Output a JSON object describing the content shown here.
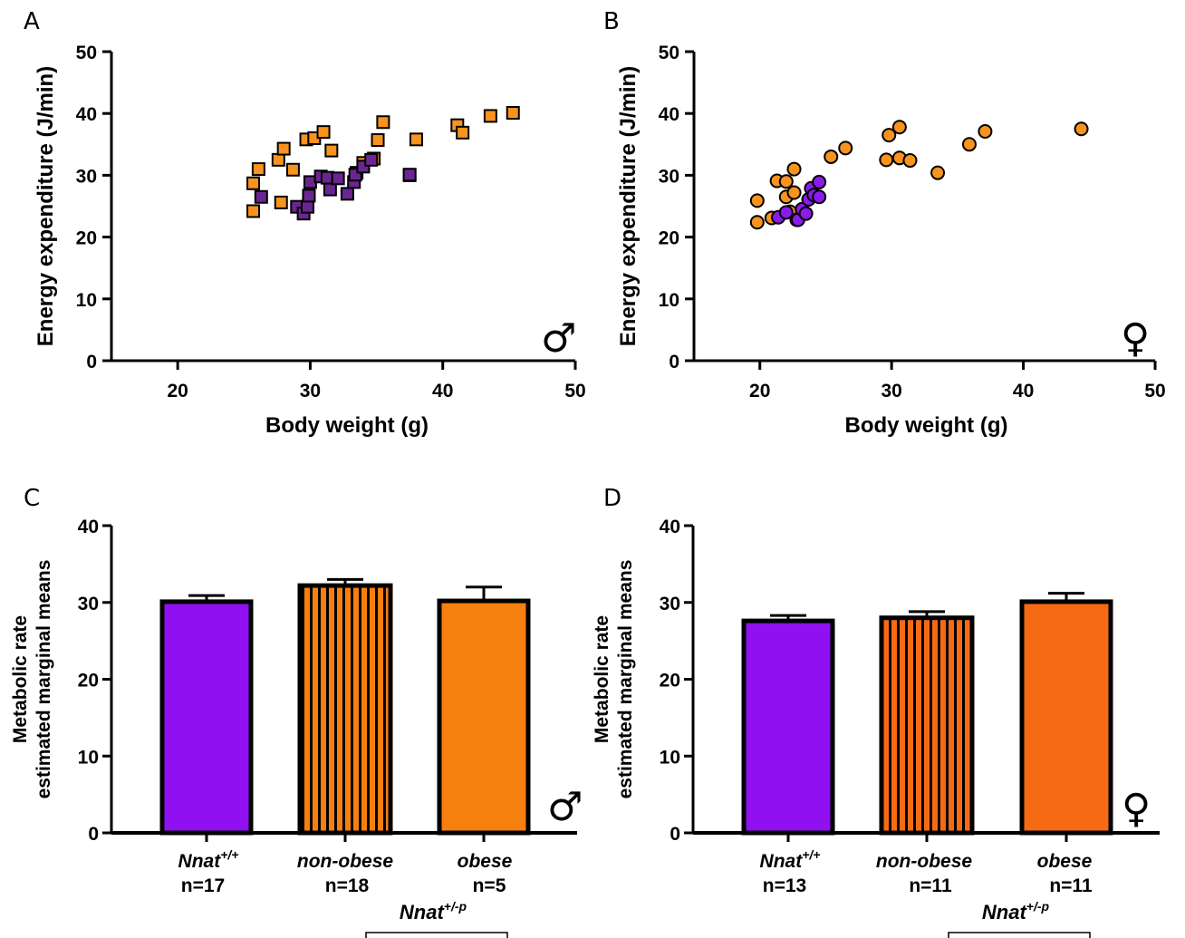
{
  "colors": {
    "purple_marker": "#6B2591",
    "orange_marker": "#F7931E",
    "violet_marker": "#8A1BEB",
    "purple_bar": "#9010F0",
    "orange_bar_male": "#F77F0E",
    "orange_bar_female": "#F76A14"
  },
  "chart_data": [
    {
      "panel": "A",
      "type": "scatter",
      "xlabel": "Body weight (g)",
      "ylabel": "Energy expenditure (J/min)",
      "xlim": [
        15,
        50
      ],
      "ylim": [
        0,
        50
      ],
      "xticks": [
        "20",
        "30",
        "40",
        "50"
      ],
      "yticks": [
        "0",
        "10",
        "20",
        "30",
        "40",
        "50"
      ],
      "sex_symbol": "♂",
      "marker": "square",
      "series": [
        {
          "color": "#F7931E",
          "points": [
            [
              25.7,
              24.2
            ],
            [
              25.7,
              28.7
            ],
            [
              26.1,
              31.0
            ],
            [
              27.6,
              32.5
            ],
            [
              28.0,
              34.3
            ],
            [
              27.8,
              25.6
            ],
            [
              28.7,
              30.9
            ],
            [
              29.7,
              35.8
            ],
            [
              30.3,
              36.0
            ],
            [
              31.0,
              37.0
            ],
            [
              31.6,
              34.0
            ],
            [
              33.5,
              30.4
            ],
            [
              34.0,
              32.0
            ],
            [
              34.8,
              32.7
            ],
            [
              35.1,
              35.7
            ],
            [
              35.5,
              38.6
            ],
            [
              38.0,
              35.8
            ],
            [
              41.1,
              38.1
            ],
            [
              41.5,
              36.9
            ],
            [
              43.6,
              39.6
            ],
            [
              45.3,
              40.1
            ],
            [
              37.5,
              30.0
            ]
          ]
        },
        {
          "color": "#6B2591",
          "points": [
            [
              26.3,
              26.5
            ],
            [
              29.0,
              24.9
            ],
            [
              29.5,
              23.8
            ],
            [
              29.8,
              24.9
            ],
            [
              29.9,
              26.7
            ],
            [
              30.0,
              28.9
            ],
            [
              30.8,
              29.8
            ],
            [
              31.3,
              29.6
            ],
            [
              31.5,
              27.7
            ],
            [
              32.1,
              29.5
            ],
            [
              32.8,
              27.0
            ],
            [
              33.3,
              28.9
            ],
            [
              33.4,
              30.1
            ],
            [
              34.0,
              31.4
            ],
            [
              34.6,
              32.5
            ],
            [
              37.5,
              30.1
            ]
          ]
        }
      ]
    },
    {
      "panel": "B",
      "type": "scatter",
      "xlabel": "Body weight (g)",
      "ylabel": "Energy expenditure (J/min)",
      "xlim": [
        15,
        50
      ],
      "ylim": [
        0,
        50
      ],
      "xticks": [
        "20",
        "30",
        "40",
        "50"
      ],
      "yticks": [
        "0",
        "10",
        "20",
        "30",
        "40",
        "50"
      ],
      "sex_symbol": "♀",
      "marker": "circle",
      "series": [
        {
          "color": "#F7931E",
          "points": [
            [
              19.8,
              25.9
            ],
            [
              19.8,
              22.4
            ],
            [
              20.9,
              23.1
            ],
            [
              21.3,
              29.1
            ],
            [
              22.0,
              29.0
            ],
            [
              22.0,
              26.5
            ],
            [
              22.3,
              24.1
            ],
            [
              22.6,
              31.0
            ],
            [
              22.6,
              27.2
            ],
            [
              22.8,
              22.8
            ],
            [
              25.4,
              33.0
            ],
            [
              26.5,
              34.4
            ],
            [
              29.6,
              32.5
            ],
            [
              29.8,
              36.5
            ],
            [
              30.6,
              37.8
            ],
            [
              30.6,
              32.8
            ],
            [
              31.4,
              32.4
            ],
            [
              33.5,
              30.4
            ],
            [
              35.9,
              35.0
            ],
            [
              37.1,
              37.1
            ],
            [
              44.4,
              37.5
            ]
          ]
        },
        {
          "color": "#8A1BEB",
          "points": [
            [
              21.4,
              23.2
            ],
            [
              22.0,
              24.0
            ],
            [
              22.9,
              22.8
            ],
            [
              23.2,
              24.5
            ],
            [
              23.5,
              23.8
            ],
            [
              23.7,
              26.1
            ],
            [
              23.9,
              27.9
            ],
            [
              24.1,
              26.8
            ],
            [
              24.5,
              26.5
            ],
            [
              24.5,
              28.9
            ]
          ]
        }
      ]
    },
    {
      "panel": "C",
      "type": "bar",
      "ylabel_lines": [
        "Metabolic rate",
        "estimated marginal means"
      ],
      "ylim": [
        0,
        40
      ],
      "yticks": [
        "0",
        "10",
        "20",
        "30",
        "40"
      ],
      "sex_symbol": "♂",
      "bars": [
        {
          "name": "Nnat",
          "sup": "+/+",
          "n": "n=17",
          "value": 30.1,
          "error": 0.8,
          "color": "#9010F0",
          "striped": false
        },
        {
          "name": "non-obese",
          "sup": "",
          "n": "n=18",
          "value": 32.2,
          "error": 0.8,
          "color": "#F77F0E",
          "striped": true
        },
        {
          "name": "obese",
          "sup": "",
          "n": "n=5",
          "value": 30.2,
          "error": 1.8,
          "color": "#F77F0E",
          "striped": false
        }
      ],
      "group_label": {
        "name": "Nnat",
        "sup": "+/-p"
      }
    },
    {
      "panel": "D",
      "type": "bar",
      "ylabel_lines": [
        "Metabolic rate",
        "estimated marginal means"
      ],
      "ylim": [
        0,
        40
      ],
      "yticks": [
        "0",
        "10",
        "20",
        "30",
        "40"
      ],
      "sex_symbol": "♀",
      "bars": [
        {
          "name": "Nnat",
          "sup": "+/+",
          "n": "n=13",
          "value": 27.6,
          "error": 0.7,
          "color": "#9010F0",
          "striped": false
        },
        {
          "name": "non-obese",
          "sup": "",
          "n": "n=11",
          "value": 28.0,
          "error": 0.8,
          "color": "#F76A14",
          "striped": true
        },
        {
          "name": "obese",
          "sup": "",
          "n": "n=11",
          "value": 30.1,
          "error": 1.1,
          "color": "#F76A14",
          "striped": false
        }
      ],
      "group_label": {
        "name": "Nnat",
        "sup": "+/-p"
      }
    }
  ]
}
